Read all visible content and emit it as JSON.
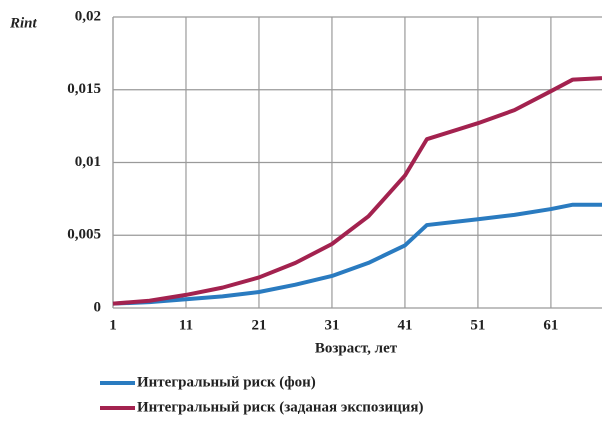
{
  "chart_data": {
    "type": "line",
    "y_label": "Rint",
    "x_label": "Возраст, лет",
    "x": [
      1,
      6,
      11,
      16,
      21,
      26,
      31,
      36,
      41,
      44,
      51,
      56,
      61,
      64,
      68
    ],
    "series": [
      {
        "name": "Интегральный риск (фон)",
        "color": "#2a7bc0",
        "values": [
          0.0003,
          0.0004,
          0.0006,
          0.0008,
          0.0011,
          0.0016,
          0.0022,
          0.0031,
          0.0043,
          0.0057,
          0.0061,
          0.0064,
          0.0068,
          0.0071,
          0.0071
        ]
      },
      {
        "name": "Интегральный риск (заданая экспозиция)",
        "color": "#a3224f",
        "values": [
          0.0003,
          0.0005,
          0.0009,
          0.0014,
          0.0021,
          0.0031,
          0.0044,
          0.0063,
          0.0091,
          0.0116,
          0.0127,
          0.0136,
          0.0149,
          0.0157,
          0.0158
        ]
      }
    ],
    "xlim": [
      1,
      68
    ],
    "xticks": [
      1,
      11,
      21,
      31,
      41,
      51,
      61
    ],
    "ylim": [
      0,
      0.02
    ],
    "yticks": [
      0,
      {
        "value": 0.005,
        "label": "0,005"
      },
      {
        "value": 0.01,
        "label": "0,01"
      },
      {
        "value": 0.015,
        "label": "0,015"
      },
      {
        "value": 0.02,
        "label": "0,02"
      }
    ],
    "grid": true
  }
}
